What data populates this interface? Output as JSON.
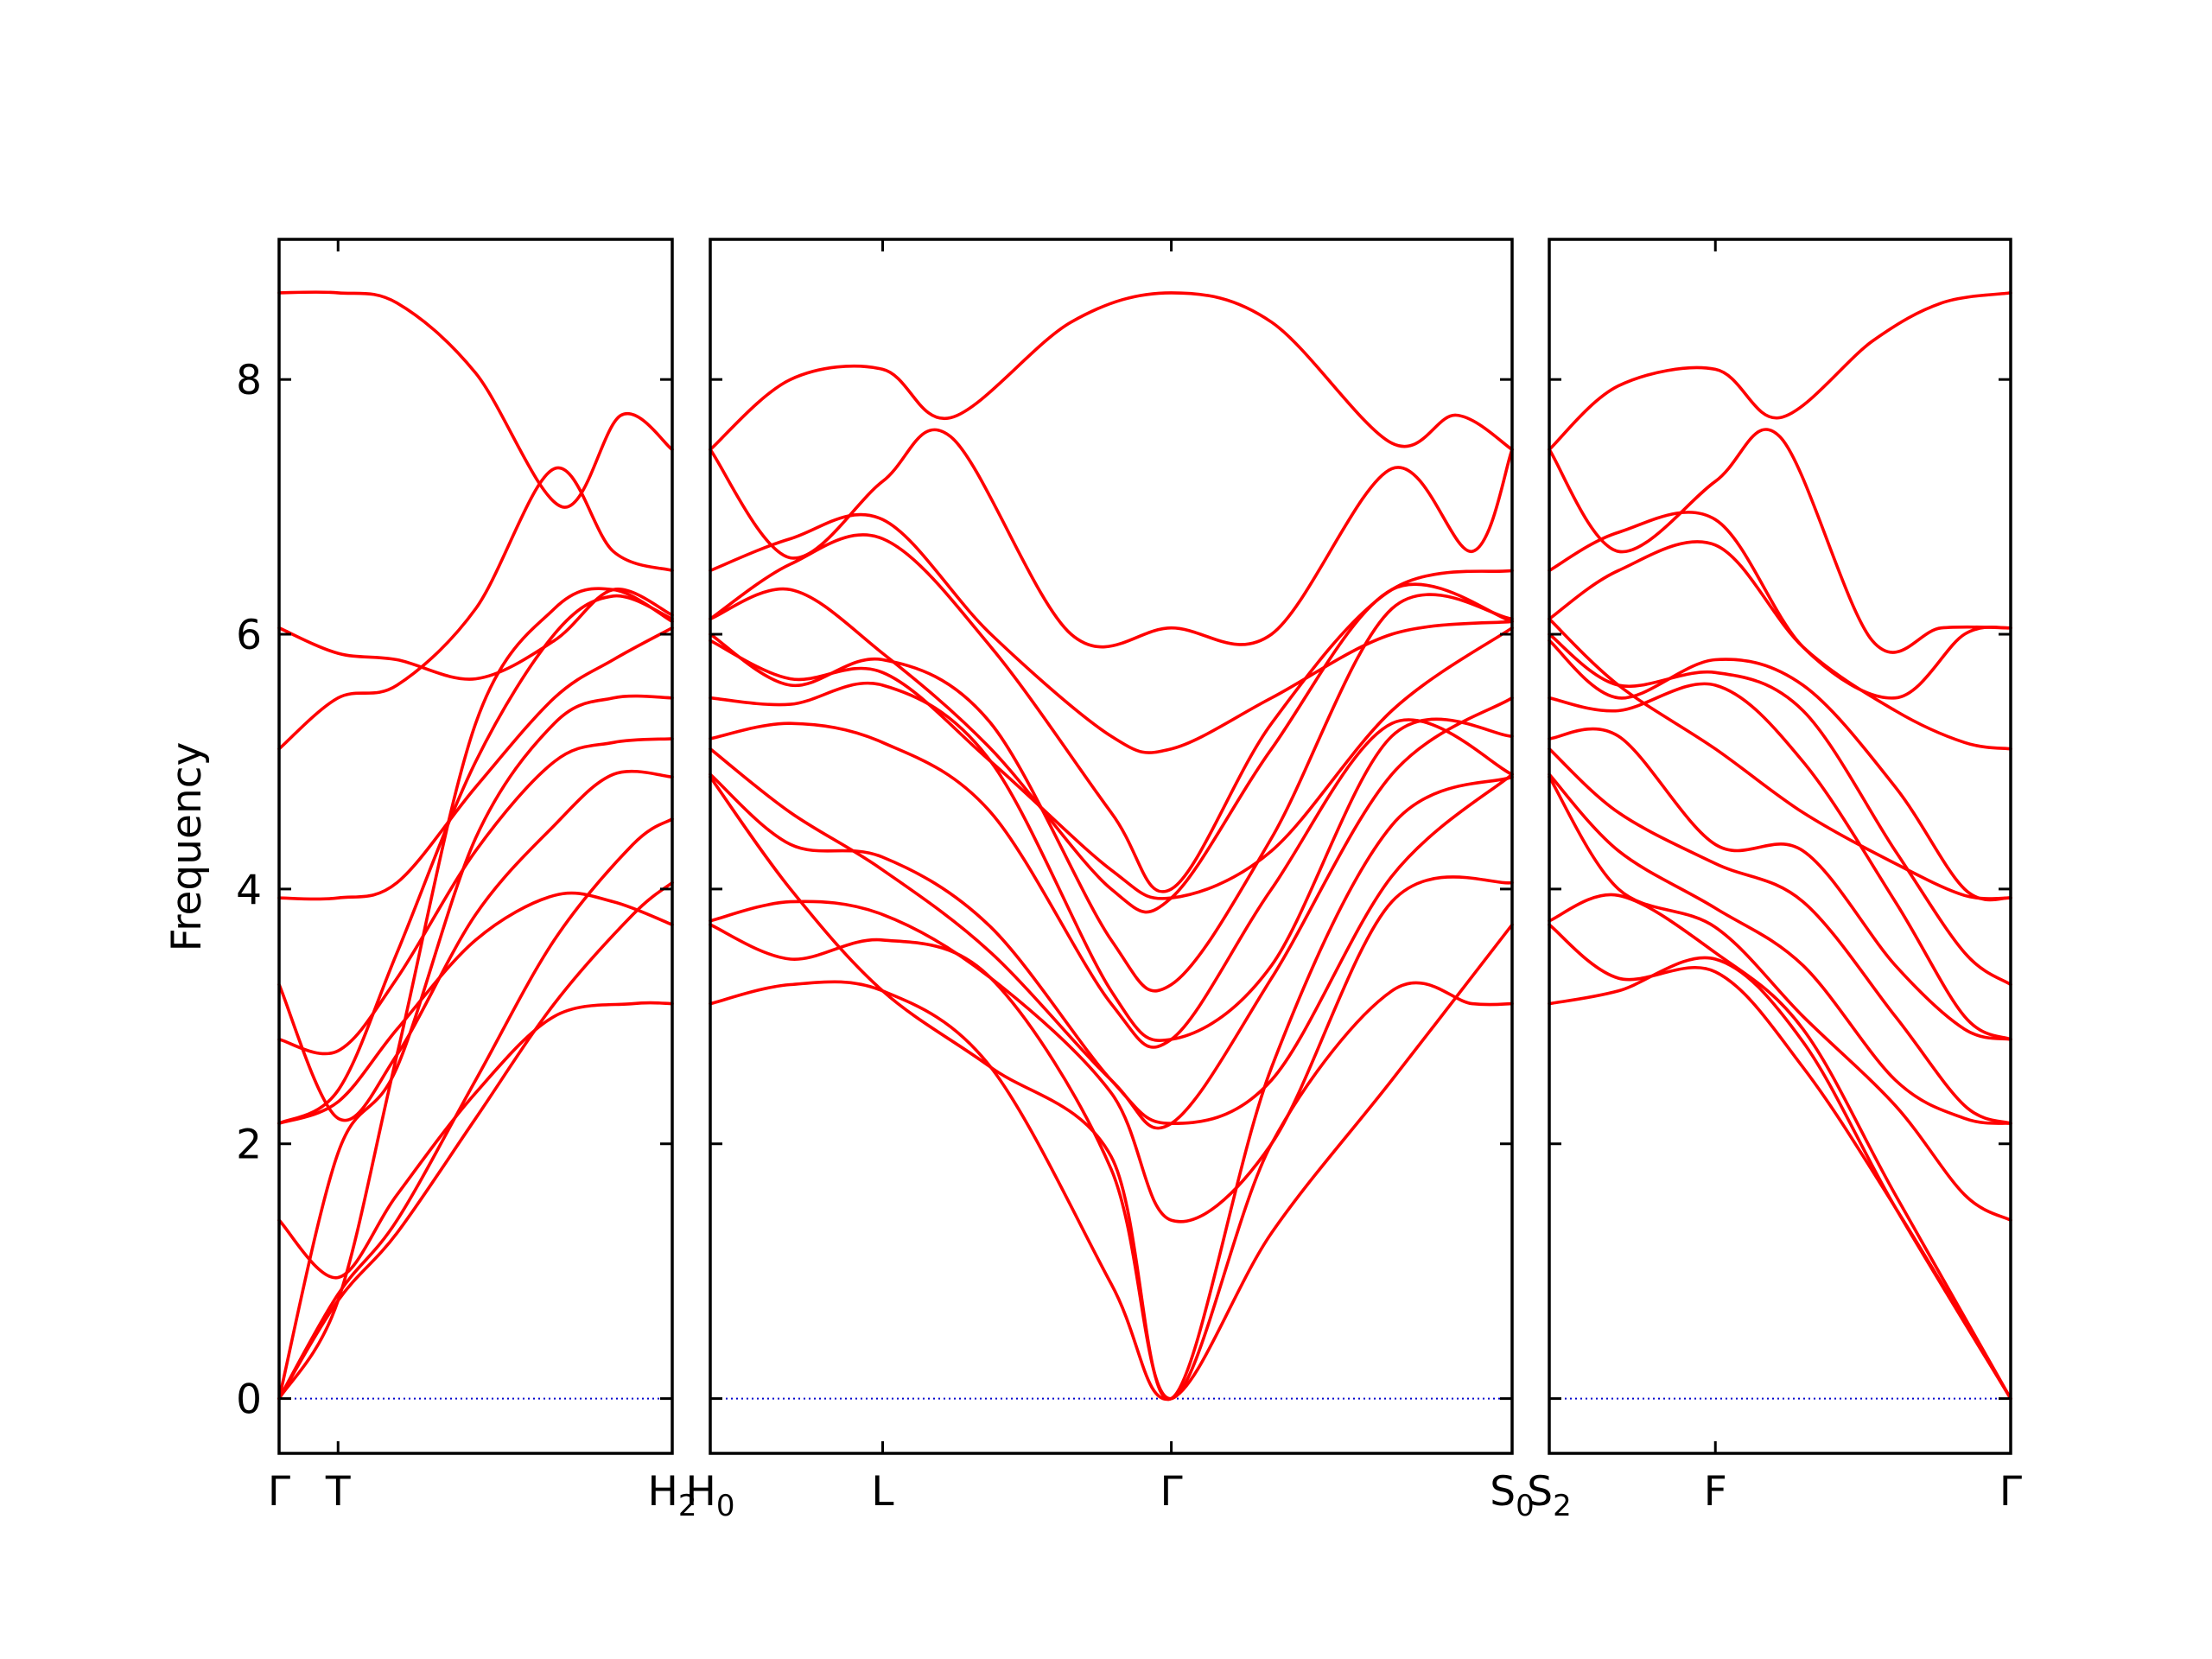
{
  "chart_data": {
    "type": "line",
    "title": "",
    "ylabel": "Frequency",
    "ylim": [
      -0.43,
      9.1
    ],
    "yticks": [
      0,
      2,
      4,
      6,
      8
    ],
    "grid": false,
    "legend": "none",
    "colors": {
      "bands": "#ff0000",
      "zero": "#0000cc",
      "axes": "#000000"
    },
    "panels": [
      {
        "name": "panel-1",
        "xlim": [
          0,
          1
        ],
        "ticks": [
          {
            "x": 0.0,
            "label": "Γ",
            "sub": ""
          },
          {
            "x": 0.15,
            "label": "T",
            "sub": ""
          },
          {
            "x": 1.0,
            "label": "H",
            "sub": "2"
          }
        ],
        "series": [
          {
            "x": [
              0,
              0.15,
              0.3,
              0.5,
              0.7,
              0.9,
              1.0
            ],
            "values": [
              0.0,
              0.77,
              1.3,
              2.2,
              3.1,
              3.8,
              4.05
            ]
          },
          {
            "x": [
              0,
              0.15,
              0.3,
              0.5,
              0.7,
              0.9,
              1.0
            ],
            "values": [
              0.0,
              0.82,
              1.4,
              2.5,
              3.6,
              4.35,
              4.55
            ]
          },
          {
            "x": [
              0,
              0.15,
              0.3,
              0.5,
              0.7,
              0.9,
              1.0
            ],
            "values": [
              1.4,
              0.95,
              1.6,
              2.4,
              3.0,
              3.1,
              3.1
            ]
          },
          {
            "x": [
              0,
              0.15,
              0.3,
              0.5,
              0.7,
              0.85,
              1.0
            ],
            "values": [
              2.16,
              2.33,
              2.9,
              3.6,
              3.95,
              3.9,
              3.72
            ]
          },
          {
            "x": [
              0,
              0.15,
              0.3,
              0.5,
              0.7,
              0.85,
              1.0
            ],
            "values": [
              3.25,
              2.2,
              2.7,
              3.8,
              4.5,
              4.9,
              4.88
            ]
          },
          {
            "x": [
              0,
              0.15,
              0.3,
              0.5,
              0.7,
              0.85,
              1.0
            ],
            "values": [
              2.82,
              2.73,
              3.3,
              4.3,
              5.0,
              5.15,
              5.18
            ]
          },
          {
            "x": [
              0,
              0.15,
              0.3,
              0.5,
              0.7,
              0.85,
              1.0
            ],
            "values": [
              0.0,
              1.93,
              2.6,
              4.4,
              5.3,
              5.5,
              5.5
            ]
          },
          {
            "x": [
              0,
              0.15,
              0.3,
              0.5,
              0.7,
              0.85,
              1.0
            ],
            "values": [
              3.93,
              3.93,
              4.05,
              4.8,
              5.5,
              5.8,
              6.05
            ]
          },
          {
            "x": [
              0,
              0.15,
              0.3,
              0.5,
              0.7,
              0.85,
              1.0
            ],
            "values": [
              2.16,
              2.42,
              3.5,
              5.0,
              6.0,
              6.3,
              6.12
            ]
          },
          {
            "x": [
              0,
              0.15,
              0.3,
              0.5,
              0.7,
              0.85,
              1.0
            ],
            "values": [
              0.0,
              0.77,
              2.7,
              5.3,
              6.2,
              6.35,
              6.1
            ]
          },
          {
            "x": [
              0,
              0.15,
              0.3,
              0.5,
              0.7,
              0.85,
              1.0
            ],
            "values": [
              6.05,
              5.85,
              5.8,
              5.65,
              5.95,
              6.35,
              6.15
            ]
          },
          {
            "x": [
              0,
              0.15,
              0.3,
              0.5,
              0.7,
              0.85,
              1.0
            ],
            "values": [
              5.1,
              5.5,
              5.6,
              6.2,
              7.3,
              6.65,
              6.5
            ]
          },
          {
            "x": [
              0,
              0.15,
              0.3,
              0.5,
              0.72,
              0.87,
              1.0
            ],
            "values": [
              8.68,
              8.68,
              8.6,
              8.05,
              7.0,
              7.72,
              7.45
            ]
          }
        ]
      },
      {
        "name": "panel-2",
        "xlim": [
          0,
          1
        ],
        "ticks": [
          {
            "x": 0.0,
            "label": "H",
            "sub": "0"
          },
          {
            "x": 0.215,
            "label": "L",
            "sub": ""
          },
          {
            "x": 0.575,
            "label": "Γ",
            "sub": ""
          },
          {
            "x": 1.0,
            "label": "S",
            "sub": "0"
          }
        ],
        "series": [
          {
            "x": [
              0,
              0.1,
              0.215,
              0.35,
              0.5,
              0.575,
              0.7,
              0.85,
              1.0
            ],
            "values": [
              3.1,
              3.25,
              3.2,
              2.6,
              0.9,
              0.0,
              1.3,
              2.5,
              3.72
            ]
          },
          {
            "x": [
              0,
              0.1,
              0.215,
              0.35,
              0.5,
              0.575,
              0.7,
              0.85,
              0.95,
              1.0
            ],
            "values": [
              3.72,
              3.45,
              3.6,
              3.3,
              1.8,
              0.0,
              2.0,
              3.2,
              3.1,
              3.1
            ]
          },
          {
            "x": [
              0,
              0.1,
              0.215,
              0.35,
              0.5,
              0.575,
              0.7,
              0.85,
              1.0
            ],
            "values": [
              3.75,
              3.9,
              3.8,
              3.3,
              2.4,
              1.4,
              2.0,
              3.9,
              4.05
            ]
          },
          {
            "x": [
              0,
              0.1,
              0.215,
              0.35,
              0.5,
              0.575,
              0.7,
              0.85,
              1.0
            ],
            "values": [
              4.88,
              4.0,
              3.2,
              2.6,
              1.9,
              0.0,
              2.6,
              4.5,
              4.88
            ]
          },
          {
            "x": [
              0,
              0.1,
              0.215,
              0.35,
              0.5,
              0.575,
              0.7,
              0.85,
              1.0
            ],
            "values": [
              4.9,
              4.35,
              4.25,
              3.7,
              2.5,
              2.16,
              2.5,
              4.1,
              4.9
            ]
          },
          {
            "x": [
              0,
              0.1,
              0.215,
              0.35,
              0.5,
              0.575,
              0.7,
              0.85,
              1.0
            ],
            "values": [
              5.1,
              4.6,
              4.15,
              3.5,
              2.5,
              2.16,
              3.3,
              4.9,
              5.5
            ]
          },
          {
            "x": [
              0,
              0.1,
              0.215,
              0.35,
              0.5,
              0.575,
              0.7,
              0.85,
              1.0
            ],
            "values": [
              5.5,
              5.45,
              5.6,
              5.0,
              3.2,
              2.82,
              3.4,
              5.2,
              5.2
            ]
          },
          {
            "x": [
              0,
              0.1,
              0.215,
              0.35,
              0.5,
              0.575,
              0.7,
              0.85,
              1.0
            ],
            "values": [
              5.18,
              5.3,
              5.15,
              4.6,
              3.1,
              2.82,
              4.0,
              5.3,
              4.9
            ]
          },
          {
            "x": [
              0,
              0.1,
              0.215,
              0.35,
              0.5,
              0.575,
              0.7,
              0.85,
              1.0
            ],
            "values": [
              6.0,
              5.6,
              5.8,
              5.3,
              3.6,
              3.25,
              4.4,
              6.2,
              6.12
            ]
          },
          {
            "x": [
              0,
              0.1,
              0.215,
              0.35,
              0.5,
              0.575,
              0.7,
              0.85,
              1.0
            ],
            "values": [
              5.95,
              5.65,
              5.7,
              5.0,
              4.15,
              3.93,
              4.3,
              5.4,
              6.05
            ]
          },
          {
            "x": [
              0,
              0.1,
              0.215,
              0.35,
              0.5,
              0.575,
              0.7,
              0.85,
              1.0
            ],
            "values": [
              6.12,
              6.35,
              5.85,
              5.1,
              4.0,
              3.93,
              5.1,
              6.35,
              6.1
            ]
          },
          {
            "x": [
              0,
              0.1,
              0.215,
              0.35,
              0.5,
              0.575,
              0.7,
              0.85,
              1.0
            ],
            "values": [
              6.5,
              6.75,
              6.9,
              6.0,
              5.2,
              5.1,
              5.5,
              6.0,
              6.1
            ]
          },
          {
            "x": [
              0,
              0.1,
              0.215,
              0.35,
              0.5,
              0.575,
              0.7,
              0.85,
              1.0
            ],
            "values": [
              6.12,
              6.55,
              6.75,
              5.9,
              4.6,
              4.0,
              5.3,
              6.35,
              6.5
            ]
          },
          {
            "x": [
              0,
              0.1,
              0.215,
              0.3,
              0.45,
              0.575,
              0.7,
              0.85,
              0.95,
              1.0
            ],
            "values": [
              7.45,
              6.6,
              7.2,
              7.55,
              6.0,
              6.05,
              6.0,
              7.3,
              6.65,
              7.45
            ]
          },
          {
            "x": [
              0,
              0.1,
              0.215,
              0.3,
              0.45,
              0.575,
              0.7,
              0.85,
              0.93,
              1.0
            ],
            "values": [
              7.45,
              8.0,
              8.08,
              7.7,
              8.45,
              8.68,
              8.45,
              7.5,
              7.72,
              7.45
            ]
          }
        ]
      },
      {
        "name": "panel-3",
        "xlim": [
          0,
          1
        ],
        "ticks": [
          {
            "x": 0.0,
            "label": "S",
            "sub": "2"
          },
          {
            "x": 0.36,
            "label": "F",
            "sub": ""
          },
          {
            "x": 1.0,
            "label": "Γ",
            "sub": ""
          }
        ],
        "series": [
          {
            "x": [
              0,
              0.15,
              0.36,
              0.55,
              0.75,
              1.0
            ],
            "values": [
              3.1,
              3.2,
              3.45,
              2.8,
              1.5,
              0.0
            ]
          },
          {
            "x": [
              0,
              0.15,
              0.36,
              0.55,
              0.75,
              1.0
            ],
            "values": [
              3.72,
              3.3,
              3.35,
              2.6,
              1.5,
              0.0
            ]
          },
          {
            "x": [
              0,
              0.15,
              0.36,
              0.55,
              0.75,
              1.0
            ],
            "values": [
              3.75,
              3.95,
              3.5,
              2.9,
              1.6,
              0.0
            ]
          },
          {
            "x": [
              0,
              0.15,
              0.36,
              0.55,
              0.75,
              0.9,
              1.0
            ],
            "values": [
              4.88,
              4.0,
              3.7,
              3.0,
              2.3,
              1.6,
              1.4
            ]
          },
          {
            "x": [
              0,
              0.15,
              0.36,
              0.55,
              0.75,
              0.9,
              1.0
            ],
            "values": [
              4.9,
              4.3,
              3.85,
              3.4,
              2.5,
              2.2,
              2.16
            ]
          },
          {
            "x": [
              0,
              0.15,
              0.36,
              0.55,
              0.75,
              0.9,
              1.0
            ],
            "values": [
              5.1,
              4.6,
              4.2,
              3.9,
              3.0,
              2.3,
              2.16
            ]
          },
          {
            "x": [
              0,
              0.15,
              0.36,
              0.55,
              0.75,
              0.9,
              1.0
            ],
            "values": [
              5.18,
              5.2,
              4.35,
              4.3,
              3.4,
              2.9,
              2.82
            ]
          },
          {
            "x": [
              0,
              0.15,
              0.36,
              0.55,
              0.75,
              0.9,
              1.0
            ],
            "values": [
              5.5,
              5.4,
              5.6,
              5.0,
              3.9,
              3.0,
              2.82
            ]
          },
          {
            "x": [
              0,
              0.15,
              0.36,
              0.55,
              0.75,
              0.9,
              1.0
            ],
            "values": [
              6.0,
              5.6,
              5.7,
              5.4,
              4.3,
              3.5,
              3.25
            ]
          },
          {
            "x": [
              0,
              0.15,
              0.36,
              0.55,
              0.75,
              0.9,
              1.0
            ],
            "values": [
              5.95,
              5.5,
              5.8,
              5.6,
              4.8,
              4.0,
              3.93
            ]
          },
          {
            "x": [
              0,
              0.15,
              0.36,
              0.55,
              0.75,
              0.9,
              1.0
            ],
            "values": [
              6.12,
              5.6,
              5.1,
              4.6,
              4.2,
              3.95,
              3.93
            ]
          },
          {
            "x": [
              0,
              0.15,
              0.36,
              0.55,
              0.75,
              0.9,
              1.0
            ],
            "values": [
              6.12,
              6.5,
              6.7,
              5.9,
              5.4,
              5.15,
              5.1
            ]
          },
          {
            "x": [
              0,
              0.15,
              0.36,
              0.55,
              0.75,
              0.9,
              1.0
            ],
            "values": [
              6.5,
              6.8,
              6.9,
              5.9,
              5.5,
              6.0,
              6.05
            ]
          },
          {
            "x": [
              0,
              0.15,
              0.36,
              0.5,
              0.7,
              0.85,
              1.0
            ],
            "values": [
              7.45,
              6.65,
              7.2,
              7.55,
              5.95,
              6.05,
              6.05
            ]
          },
          {
            "x": [
              0,
              0.15,
              0.36,
              0.5,
              0.7,
              0.85,
              1.0
            ],
            "values": [
              7.45,
              7.95,
              8.08,
              7.7,
              8.3,
              8.6,
              8.68
            ]
          }
        ]
      }
    ]
  }
}
